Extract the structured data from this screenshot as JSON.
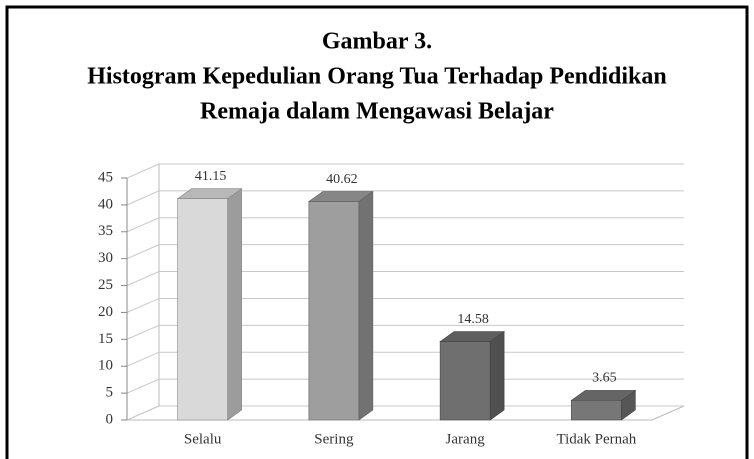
{
  "chart_data": {
    "type": "bar3d",
    "title": [
      "Gambar 3.",
      "Histogram Kepedulian Orang Tua Terhadap Pendidikan",
      "Remaja dalam Mengawasi Belajar"
    ],
    "categories": [
      "Selalu",
      "Sering",
      "Jarang",
      "Tidak Pernah"
    ],
    "values": [
      41.15,
      40.62,
      14.58,
      3.65
    ],
    "colors": [
      "#d9d9d9",
      "#9e9e9e",
      "#6f6f6f",
      "#777777"
    ],
    "ylim": [
      0,
      45
    ],
    "yticks": [
      0,
      5,
      10,
      15,
      20,
      25,
      30,
      35,
      40,
      45
    ],
    "grid": true
  }
}
